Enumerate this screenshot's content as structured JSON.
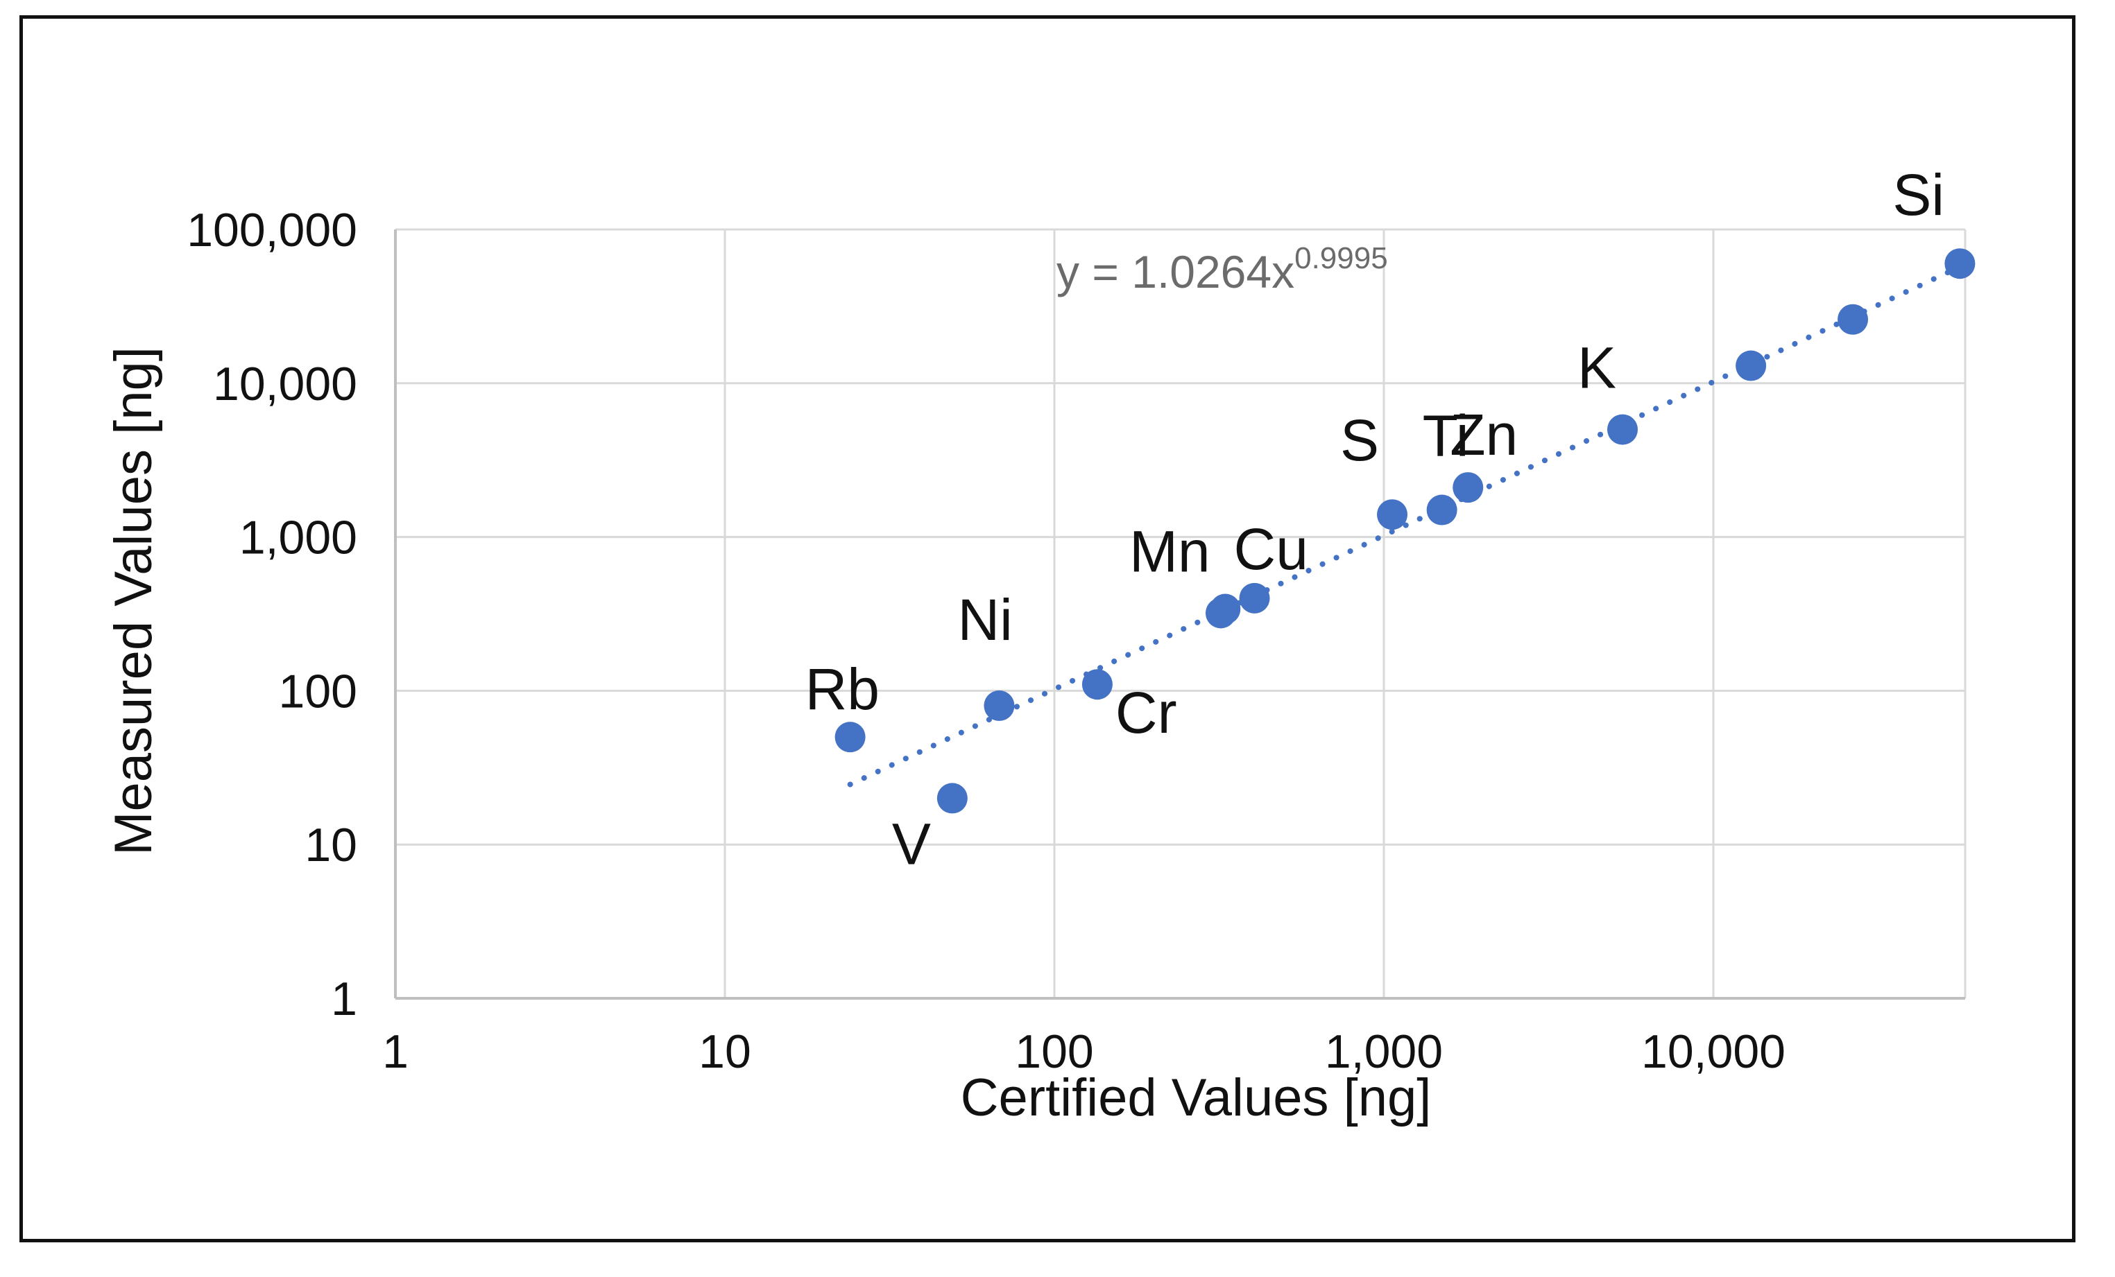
{
  "chart_data": {
    "type": "scatter",
    "title": "",
    "xlabel": "Certified Values [ng]",
    "ylabel": "Measured Values [ng]",
    "x_scale": "log",
    "y_scale": "log",
    "xlim": [
      1,
      60000
    ],
    "ylim": [
      1,
      100000
    ],
    "x_ticks": [
      "1",
      "10",
      "100",
      "1,000",
      "10,000"
    ],
    "y_ticks": [
      "1",
      "10",
      "100",
      "1,000",
      "10,000",
      "100,000"
    ],
    "grid": true,
    "marker_color": "#4472c4",
    "trendline": {
      "type": "power",
      "coefficient": 1.0264,
      "exponent": 0.9995,
      "equation_base": "y = 1.0264x",
      "equation_exponent": "0.9995",
      "x_range": [
        24,
        56000
      ],
      "style": "dotted"
    },
    "points": [
      {
        "element": "Rb",
        "x": 24,
        "y": 50
      },
      {
        "element": "V",
        "x": 49,
        "y": 20
      },
      {
        "element": "Ni",
        "x": 68,
        "y": 80
      },
      {
        "element": "Cr",
        "x": 135,
        "y": 110
      },
      {
        "element": "Mn",
        "x": 320,
        "y": 320
      },
      {
        "element": "",
        "x": 330,
        "y": 340
      },
      {
        "element": "Cu",
        "x": 405,
        "y": 400
      },
      {
        "element": "S",
        "x": 1060,
        "y": 1400
      },
      {
        "element": "Ti",
        "x": 1500,
        "y": 1500
      },
      {
        "element": "Zn",
        "x": 1800,
        "y": 2100
      },
      {
        "element": "K",
        "x": 5300,
        "y": 5000
      },
      {
        "element": "",
        "x": 13000,
        "y": 13000
      },
      {
        "element": "",
        "x": 26500,
        "y": 26000
      },
      {
        "element": "Si",
        "x": 56000,
        "y": 60000
      }
    ]
  }
}
